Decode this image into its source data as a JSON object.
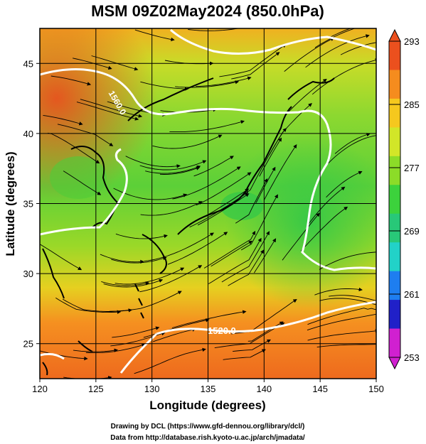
{
  "title": "MSM 09Z02May2024 (850.0hPa)",
  "x_axis": {
    "label": "Longitude (degrees)",
    "range": [
      120,
      150
    ],
    "ticks": [
      "120",
      "125",
      "130",
      "135",
      "140",
      "145",
      "150"
    ]
  },
  "y_axis": {
    "label": "Latitude  (degrees)",
    "range": [
      22.5,
      47.5
    ],
    "ticks": [
      "25",
      "30",
      "35",
      "40",
      "45"
    ]
  },
  "colorbar": {
    "range": [
      253,
      293
    ],
    "ticks": [
      "293",
      "285",
      "277",
      "269",
      "261",
      "253"
    ],
    "colors": [
      "#d020d0",
      "#2020c8",
      "#1e7ef0",
      "#22d2c8",
      "#28c878",
      "#3cd23c",
      "#8cdc28",
      "#d2e628",
      "#f5c81e",
      "#f58c1e",
      "#eb501e"
    ]
  },
  "contour_labels": [
    "1520.0",
    "1560.0"
  ],
  "footer": {
    "line1": "Drawing by DCL (https://www.gfd-dennou.org/library/dcl/)",
    "line2": "Data from http://database.rish.kyoto-u.ac.jp/arch/jmadata/"
  }
}
